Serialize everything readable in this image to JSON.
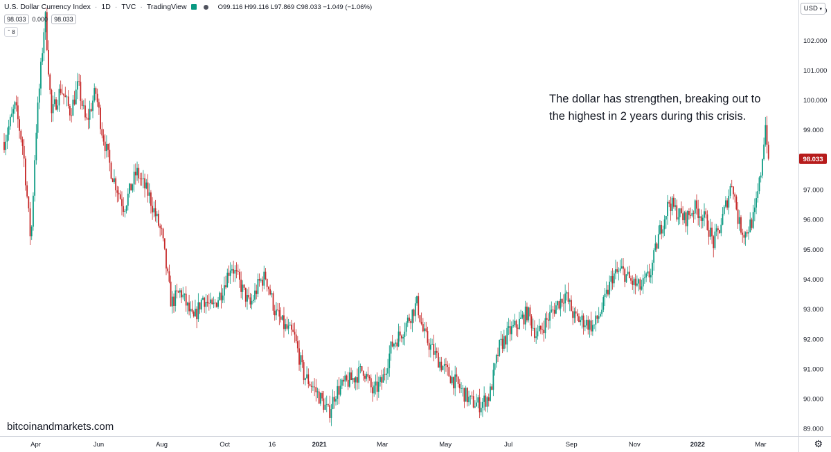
{
  "legend": {
    "symbol_name": "U.S. Dollar Currency Index",
    "interval": "1D",
    "exchange": "TVC",
    "source": "TradingView",
    "ohlc": "O99.116  H99.116  L97.869  C98.033  −1.049 (−1.06%)",
    "price_box": "98.033",
    "spread": "0.000",
    "price_box2": "98.033",
    "indicator_count": "8"
  },
  "currency_select": "USD",
  "annotation": {
    "line1": "The dollar has strengthen, breaking out to",
    "line2": "the highest in 2 years during this crisis."
  },
  "watermark": "bitcoinandmarkets.com",
  "colors": {
    "up": "#089981",
    "down": "#c62828",
    "text": "#131722",
    "border": "#d1d4dc",
    "last_price_bg": "#b71c1c"
  },
  "chart_data": {
    "type": "candlestick",
    "title": "U.S. Dollar Currency Index, 1D, TVC",
    "last_price": 98.033,
    "last_price_label": "98.033",
    "ylim": [
      88.75,
      103.35
    ],
    "y_ticks": [
      "103.000",
      "102.000",
      "101.000",
      "100.000",
      "99.000",
      "98.000",
      "97.000",
      "96.000",
      "95.000",
      "94.000",
      "93.000",
      "92.000",
      "91.000",
      "90.000",
      "89.000"
    ],
    "x_range_months": [
      0,
      24.3
    ],
    "x_ticks": [
      {
        "label": "Apr",
        "m": 1.0
      },
      {
        "label": "Jun",
        "m": 3.0
      },
      {
        "label": "Aug",
        "m": 5.0
      },
      {
        "label": "Oct",
        "m": 7.0
      },
      {
        "label": "16",
        "m": 8.5
      },
      {
        "label": "2021",
        "m": 10.0
      },
      {
        "label": "Mar",
        "m": 12.0
      },
      {
        "label": "May",
        "m": 14.0
      },
      {
        "label": "Jul",
        "m": 16.0
      },
      {
        "label": "Sep",
        "m": 18.0
      },
      {
        "label": "Nov",
        "m": 20.0
      },
      {
        "label": "2022",
        "m": 22.0
      },
      {
        "label": "Mar",
        "m": 24.0
      }
    ],
    "path_keypoints": [
      [
        0.0,
        98.6
      ],
      [
        0.35,
        99.8
      ],
      [
        0.6,
        98.4
      ],
      [
        0.85,
        95.2
      ],
      [
        1.0,
        98.8
      ],
      [
        1.3,
        102.9
      ],
      [
        1.5,
        99.5
      ],
      [
        1.8,
        100.4
      ],
      [
        2.1,
        99.6
      ],
      [
        2.35,
        100.5
      ],
      [
        2.6,
        99.2
      ],
      [
        2.9,
        100.3
      ],
      [
        3.1,
        99.0
      ],
      [
        3.4,
        97.6
      ],
      [
        3.8,
        96.4
      ],
      [
        4.2,
        97.6
      ],
      [
        4.6,
        96.8
      ],
      [
        5.0,
        95.5
      ],
      [
        5.3,
        93.2
      ],
      [
        5.6,
        93.6
      ],
      [
        6.0,
        92.6
      ],
      [
        6.3,
        93.4
      ],
      [
        6.6,
        93.0
      ],
      [
        6.9,
        93.6
      ],
      [
        7.2,
        94.5
      ],
      [
        7.5,
        93.8
      ],
      [
        7.8,
        93.1
      ],
      [
        8.1,
        93.9
      ],
      [
        8.3,
        94.1
      ],
      [
        8.6,
        92.9
      ],
      [
        8.9,
        92.4
      ],
      [
        9.2,
        92.1
      ],
      [
        9.5,
        90.8
      ],
      [
        9.8,
        90.4
      ],
      [
        10.1,
        89.9
      ],
      [
        10.3,
        89.5
      ],
      [
        10.5,
        90.2
      ],
      [
        10.8,
        90.5
      ],
      [
        11.1,
        90.7
      ],
      [
        11.4,
        91.0
      ],
      [
        11.7,
        90.2
      ],
      [
        12.0,
        90.6
      ],
      [
        12.3,
        91.8
      ],
      [
        12.6,
        92.2
      ],
      [
        12.9,
        92.8
      ],
      [
        13.1,
        93.2
      ],
      [
        13.3,
        92.2
      ],
      [
        13.6,
        91.6
      ],
      [
        13.9,
        91.1
      ],
      [
        14.2,
        90.7
      ],
      [
        14.5,
        90.3
      ],
      [
        14.8,
        89.9
      ],
      [
        15.1,
        89.8
      ],
      [
        15.4,
        90.1
      ],
      [
        15.7,
        91.7
      ],
      [
        16.0,
        92.2
      ],
      [
        16.3,
        92.5
      ],
      [
        16.6,
        92.9
      ],
      [
        16.9,
        92.1
      ],
      [
        17.2,
        92.6
      ],
      [
        17.5,
        93.1
      ],
      [
        17.8,
        93.5
      ],
      [
        18.1,
        92.7
      ],
      [
        18.4,
        92.6
      ],
      [
        18.7,
        92.4
      ],
      [
        19.0,
        93.1
      ],
      [
        19.3,
        94.1
      ],
      [
        19.6,
        94.3
      ],
      [
        19.9,
        93.9
      ],
      [
        20.2,
        93.7
      ],
      [
        20.5,
        94.2
      ],
      [
        20.8,
        95.6
      ],
      [
        21.1,
        96.6
      ],
      [
        21.3,
        96.3
      ],
      [
        21.6,
        96.0
      ],
      [
        21.9,
        96.4
      ],
      [
        22.1,
        96.2
      ],
      [
        22.3,
        95.9
      ],
      [
        22.5,
        95.2
      ],
      [
        22.7,
        95.7
      ],
      [
        22.9,
        96.5
      ],
      [
        23.1,
        97.3
      ],
      [
        23.3,
        95.9
      ],
      [
        23.5,
        95.5
      ],
      [
        23.8,
        96.1
      ],
      [
        24.0,
        97.5
      ],
      [
        24.15,
        99.2
      ],
      [
        24.25,
        98.2
      ]
    ]
  }
}
